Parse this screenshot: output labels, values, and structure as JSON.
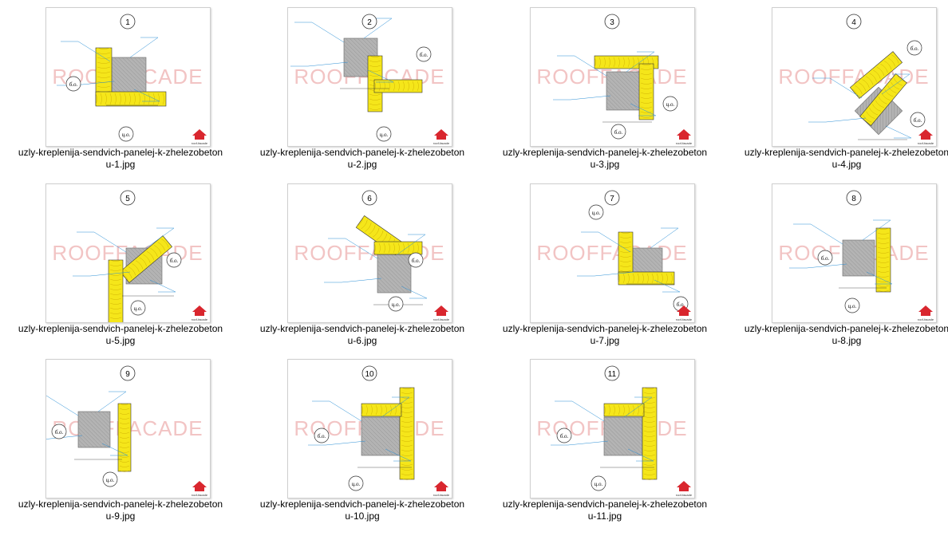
{
  "files": [
    {
      "number": "1",
      "name_line1": "uzly-kreplenija-sendvich-panelej-k-zhelezobeton",
      "name_line2": "u-1.jpg",
      "labels": [
        "б.о.",
        "ц.о."
      ],
      "watermark": "ROOFFACADE",
      "logo_text": "roof-facade"
    },
    {
      "number": "2",
      "name_line1": "uzly-kreplenija-sendvich-panelej-k-zhelezobeton",
      "name_line2": "u-2.jpg",
      "labels": [
        "б.о.",
        "ц.о."
      ],
      "watermark": "ROOFFACADE",
      "logo_text": "roof-facade"
    },
    {
      "number": "3",
      "name_line1": "uzly-kreplenija-sendvich-panelej-k-zhelezobeton",
      "name_line2": "u-3.jpg",
      "labels": [
        "б.о.",
        "ц.о."
      ],
      "watermark": "ROOFFACADE",
      "logo_text": "roof-facade"
    },
    {
      "number": "4",
      "name_line1": "uzly-kreplenija-sendvich-panelej-k-zhelezobeton",
      "name_line2": "u-4.jpg",
      "labels": [
        "б.о.",
        "б.о."
      ],
      "watermark": "ROOFFACADE",
      "logo_text": "roof-facade"
    },
    {
      "number": "5",
      "name_line1": "uzly-kreplenija-sendvich-panelej-k-zhelezobeton",
      "name_line2": "u-5.jpg",
      "labels": [
        "б.о.",
        "ц.о."
      ],
      "watermark": "ROOFFACADE",
      "logo_text": "roof-facade"
    },
    {
      "number": "6",
      "name_line1": "uzly-kreplenija-sendvich-panelej-k-zhelezobeton",
      "name_line2": "u-6.jpg",
      "labels": [
        "б.о.",
        "ц.о."
      ],
      "watermark": "ROOFFACADE",
      "logo_text": "roof-facade"
    },
    {
      "number": "7",
      "name_line1": "uzly-kreplenija-sendvich-panelej-k-zhelezobeton",
      "name_line2": "u-7.jpg",
      "labels": [
        "ц.о.",
        "б.о."
      ],
      "watermark": "ROOFFACADE",
      "logo_text": "roof-facade"
    },
    {
      "number": "8",
      "name_line1": "uzly-kreplenija-sendvich-panelej-k-zhelezobeton",
      "name_line2": "u-8.jpg",
      "labels": [
        "б.о.",
        "ц.о."
      ],
      "watermark": "ROOFFACADE",
      "logo_text": "roof-facade"
    },
    {
      "number": "9",
      "name_line1": "uzly-kreplenija-sendvich-panelej-k-zhelezobeton",
      "name_line2": "u-9.jpg",
      "labels": [
        "б.о.",
        "ц.о."
      ],
      "watermark": "ROOFFACADE",
      "logo_text": "roof-facade"
    },
    {
      "number": "10",
      "name_line1": "uzly-kreplenija-sendvich-panelej-k-zhelezobeton",
      "name_line2": "u-10.jpg",
      "labels": [
        "б.о.",
        "ц.о."
      ],
      "watermark": "ROOFFACADE",
      "logo_text": "roof-facade"
    },
    {
      "number": "11",
      "name_line1": "uzly-kreplenija-sendvich-panelej-k-zhelezobeton",
      "name_line2": "u-11.jpg",
      "labels": [
        "б.о.",
        "ц.о."
      ],
      "watermark": "ROOFFACADE",
      "logo_text": "roof-facade"
    }
  ],
  "colors": {
    "panel": "#f5e61a",
    "concrete": "#b3b3b3",
    "annotation": "#2a8fd6",
    "watermark": "#f2c4c4",
    "logo": "#d9262e"
  }
}
